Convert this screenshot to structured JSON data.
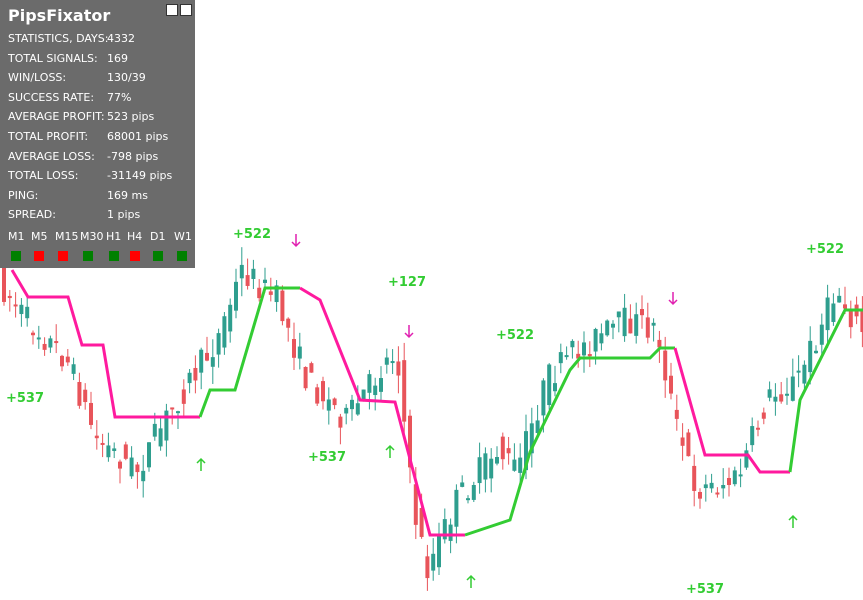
{
  "panel": {
    "title": "PipsFixator",
    "stats": [
      {
        "label": "STATISTICS, DAYS:",
        "value": "4332"
      },
      {
        "label": "TOTAL SIGNALS:",
        "value": "169"
      },
      {
        "label": "WIN/LOSS:",
        "value": "130/39"
      },
      {
        "label": "SUCCESS RATE:",
        "value": "77%"
      },
      {
        "label": "AVERAGE PROFIT:",
        "value": "523 pips"
      },
      {
        "label": "TOTAL PROFIT:",
        "value": "68001 pips"
      },
      {
        "label": "AVERAGE LOSS:",
        "value": "-798 pips"
      },
      {
        "label": "TOTAL LOSS:",
        "value": "-31149 pips"
      },
      {
        "label": "PING:",
        "value": "169 ms"
      },
      {
        "label": "SPREAD:",
        "value": "1 pips"
      }
    ],
    "timeframes": [
      {
        "label": "M1",
        "status": "green"
      },
      {
        "label": "M5",
        "status": "red"
      },
      {
        "label": "M15",
        "status": "red"
      },
      {
        "label": "M30",
        "status": "green"
      },
      {
        "label": "H1",
        "status": "green"
      },
      {
        "label": "H4",
        "status": "red"
      },
      {
        "label": "D1",
        "status": "green"
      },
      {
        "label": "W1",
        "status": "green"
      }
    ]
  },
  "annotations": [
    "+522",
    "+127",
    "+522",
    "+537",
    "+537",
    "+522",
    "+537"
  ]
}
